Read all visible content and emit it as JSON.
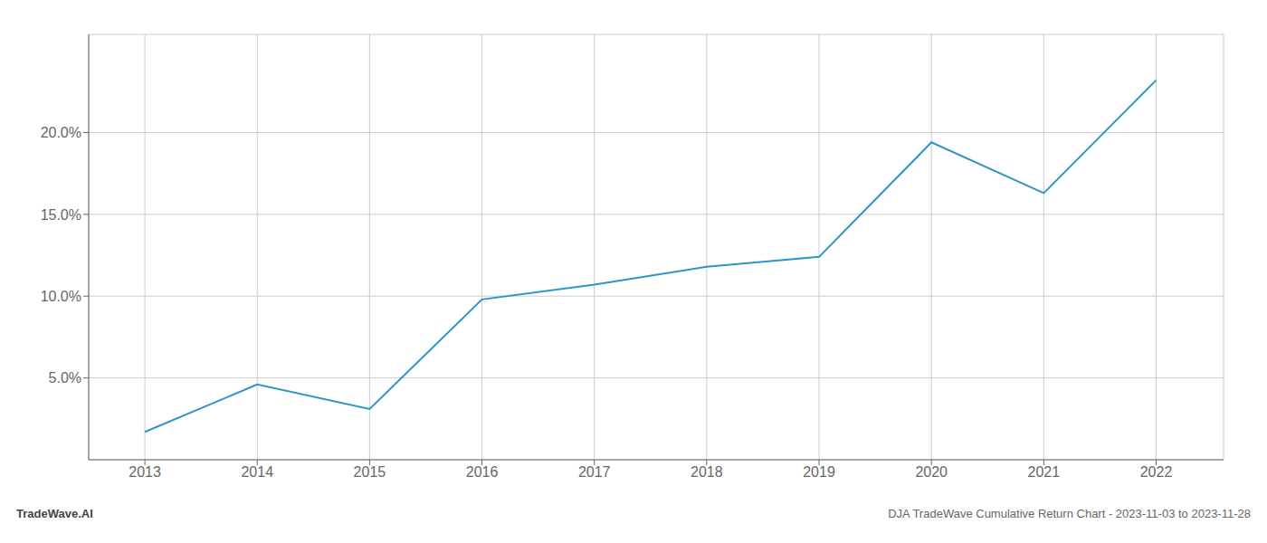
{
  "chart_data": {
    "type": "line",
    "x": [
      2013,
      2014,
      2015,
      2016,
      2017,
      2018,
      2019,
      2020,
      2021,
      2022
    ],
    "series": [
      {
        "name": "Cumulative Return",
        "color": "#2b95c8",
        "values": [
          1.7,
          4.6,
          3.1,
          9.8,
          10.7,
          11.8,
          12.4,
          19.4,
          16.3,
          23.2
        ]
      }
    ],
    "xlim": [
      2012.5,
      2022.6
    ],
    "xticks": [
      2013,
      2014,
      2015,
      2016,
      2017,
      2018,
      2019,
      2020,
      2021,
      2022
    ],
    "ylim": [
      0,
      26
    ],
    "yticks": [
      {
        "value": 5.0,
        "label": "5.0%"
      },
      {
        "value": 10.0,
        "label": "10.0%"
      },
      {
        "value": 15.0,
        "label": "15.0%"
      },
      {
        "value": 20.0,
        "label": "20.0%"
      }
    ],
    "grid": true,
    "annotations": [
      "TradeWave.AI",
      "DJA TradeWave Cumulative Return Chart - 2023-11-03 to 2023-11-28"
    ]
  }
}
